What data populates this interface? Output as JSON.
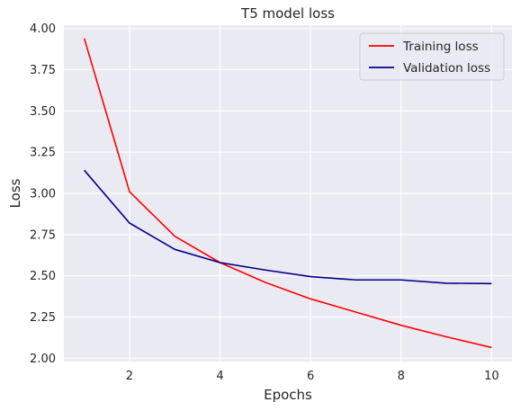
{
  "chart_data": {
    "type": "line",
    "title": "T5 model loss",
    "xlabel": "Epochs",
    "ylabel": "Loss",
    "x": [
      1,
      2,
      3,
      4,
      5,
      6,
      7,
      8,
      9,
      10
    ],
    "xlim": [
      0.55,
      10.45
    ],
    "ylim": [
      1.98,
      4.02
    ],
    "xticks": [
      2,
      4,
      6,
      8,
      10
    ],
    "yticks": [
      2.0,
      2.25,
      2.5,
      2.75,
      3.0,
      3.25,
      3.5,
      3.75,
      4.0
    ],
    "xtick_labels": [
      "2",
      "4",
      "6",
      "8",
      "10"
    ],
    "ytick_labels": [
      "2.00",
      "2.25",
      "2.50",
      "2.75",
      "3.00",
      "3.25",
      "3.50",
      "3.75",
      "4.00"
    ],
    "grid": true,
    "legend_position": "top-right",
    "background_color": "#eaeaf2",
    "grid_color": "#ffffff",
    "series": [
      {
        "name": "Training loss",
        "color": "#ff0000",
        "values": [
          3.94,
          3.01,
          2.74,
          2.58,
          2.46,
          2.36,
          2.28,
          2.2,
          2.13,
          2.065
        ]
      },
      {
        "name": "Validation loss",
        "color": "#00008b",
        "values": [
          3.14,
          2.82,
          2.66,
          2.58,
          2.535,
          2.495,
          2.475,
          2.475,
          2.455,
          2.453
        ]
      }
    ]
  }
}
